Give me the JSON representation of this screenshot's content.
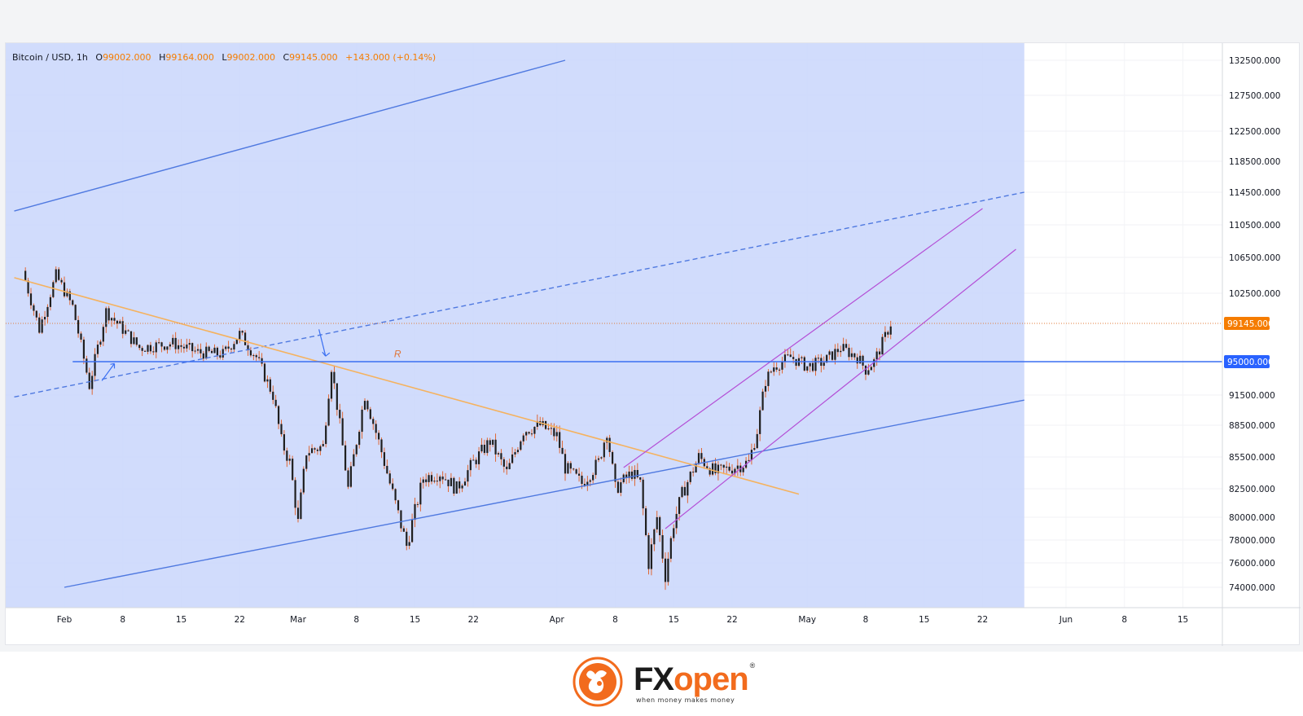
{
  "legend": {
    "symbol": "Bitcoin / USD, 1h",
    "open_label": "O",
    "open": "99002.000",
    "high_label": "H",
    "high": "99164.000",
    "low_label": "L",
    "low": "99002.000",
    "close_label": "C",
    "close": "99145.000",
    "change": "+143.000 (+0.14%)"
  },
  "colors": {
    "channel_fill": "#c9d6fb",
    "channel_line": "#4f79e0",
    "trendline": "#f5b25f",
    "purple_channel": "#b44fd6",
    "support_line": "#3a6ff2",
    "candle": "#1f1f1f",
    "wick": "#e05a1f",
    "price_tag": "#f57c00",
    "level_tag": "#2962ff"
  },
  "annotations": {
    "r_label": "R"
  },
  "price_tag": "99145.000",
  "level_tag": "95000.000",
  "logo": {
    "brand_fx": "FX",
    "brand_open": "open",
    "tagline": "when money makes money"
  },
  "chart_data": {
    "type": "candlestick",
    "symbol": "Bitcoin / USD",
    "timeframe": "1h",
    "x_tick_labels": [
      "Feb",
      "8",
      "15",
      "22",
      "Mar",
      "8",
      "15",
      "22",
      "Apr",
      "8",
      "15",
      "22",
      "May",
      "8",
      "15",
      "22",
      "Jun",
      "8",
      "15"
    ],
    "y_tick_labels": [
      "132500.000",
      "127500.000",
      "122500.000",
      "118500.000",
      "114500.000",
      "110500.000",
      "106500.000",
      "102500.000",
      "99145.000",
      "95000.000",
      "91500.000",
      "88500.000",
      "85500.000",
      "82500.000",
      "80000.000",
      "78000.000",
      "76000.000",
      "74000.000"
    ],
    "y_ticks": [
      132500,
      127500,
      122500,
      118500,
      114500,
      110500,
      106500,
      102500,
      91500,
      88500,
      85500,
      82500,
      80000,
      78000,
      76000,
      74000
    ],
    "last_price": 99145,
    "horizontal_level": 95000,
    "price_path": [
      {
        "day": -5,
        "price": 105000
      },
      {
        "day": -3,
        "price": 98500
      },
      {
        "day": -1,
        "price": 104500
      },
      {
        "day": 1,
        "price": 101000
      },
      {
        "day": 3,
        "price": 92500
      },
      {
        "day": 5,
        "price": 100500
      },
      {
        "day": 9,
        "price": 96500
      },
      {
        "day": 13,
        "price": 97000
      },
      {
        "day": 16,
        "price": 96000
      },
      {
        "day": 19,
        "price": 95800
      },
      {
        "day": 21,
        "price": 98000
      },
      {
        "day": 23,
        "price": 95500
      },
      {
        "day": 25,
        "price": 91500
      },
      {
        "day": 26,
        "price": 87000
      },
      {
        "day": 27,
        "price": 85000
      },
      {
        "day": 28,
        "price": 79500
      },
      {
        "day": 29,
        "price": 86000
      },
      {
        "day": 31,
        "price": 86500
      },
      {
        "day": 32,
        "price": 94500
      },
      {
        "day": 34,
        "price": 82500
      },
      {
        "day": 36,
        "price": 91500
      },
      {
        "day": 38,
        "price": 86000
      },
      {
        "day": 39,
        "price": 83000
      },
      {
        "day": 41,
        "price": 77500
      },
      {
        "day": 43,
        "price": 83500
      },
      {
        "day": 45,
        "price": 84000
      },
      {
        "day": 47,
        "price": 82500
      },
      {
        "day": 49,
        "price": 85000
      },
      {
        "day": 51,
        "price": 87000
      },
      {
        "day": 53,
        "price": 84000
      },
      {
        "day": 55,
        "price": 88000
      },
      {
        "day": 57,
        "price": 88500
      },
      {
        "day": 59,
        "price": 87500
      },
      {
        "day": 60,
        "price": 84500
      },
      {
        "day": 62,
        "price": 83000
      },
      {
        "day": 64,
        "price": 85000
      },
      {
        "day": 65,
        "price": 88000
      },
      {
        "day": 66,
        "price": 82500
      },
      {
        "day": 68,
        "price": 84000
      },
      {
        "day": 69,
        "price": 83000
      },
      {
        "day": 70,
        "price": 76000
      },
      {
        "day": 71,
        "price": 80000
      },
      {
        "day": 72,
        "price": 75000
      },
      {
        "day": 73,
        "price": 79500
      },
      {
        "day": 74,
        "price": 82000
      },
      {
        "day": 76,
        "price": 85500
      },
      {
        "day": 78,
        "price": 84000
      },
      {
        "day": 80,
        "price": 84500
      },
      {
        "day": 82,
        "price": 85000
      },
      {
        "day": 83,
        "price": 88000
      },
      {
        "day": 84,
        "price": 93000
      },
      {
        "day": 85,
        "price": 94500
      },
      {
        "day": 87,
        "price": 95500
      },
      {
        "day": 89,
        "price": 94500
      },
      {
        "day": 91,
        "price": 95000
      },
      {
        "day": 93,
        "price": 96500
      },
      {
        "day": 95,
        "price": 95500
      },
      {
        "day": 96,
        "price": 94200
      },
      {
        "day": 97,
        "price": 95000
      },
      {
        "day": 98,
        "price": 97000
      },
      {
        "day": 99,
        "price": 99145
      }
    ],
    "drawings": {
      "ascending_channel": {
        "upper": [
          [
            -5,
            112500
          ],
          [
            60,
            132500
          ]
        ],
        "lower": [
          [
            0,
            74000
          ],
          [
            115,
            91000
          ]
        ],
        "mid_dashed": [
          [
            -5,
            91500
          ],
          [
            115,
            114500
          ]
        ]
      },
      "descending_trendline": [
        [
          -5,
          104000
        ],
        [
          86,
          82500
        ]
      ],
      "purple_channel": {
        "upper": [
          [
            67,
            84500
          ],
          [
            110,
            112500
          ]
        ],
        "lower": [
          [
            72,
            79000
          ],
          [
            114,
            107500
          ]
        ]
      },
      "support_level": 95000
    }
  }
}
